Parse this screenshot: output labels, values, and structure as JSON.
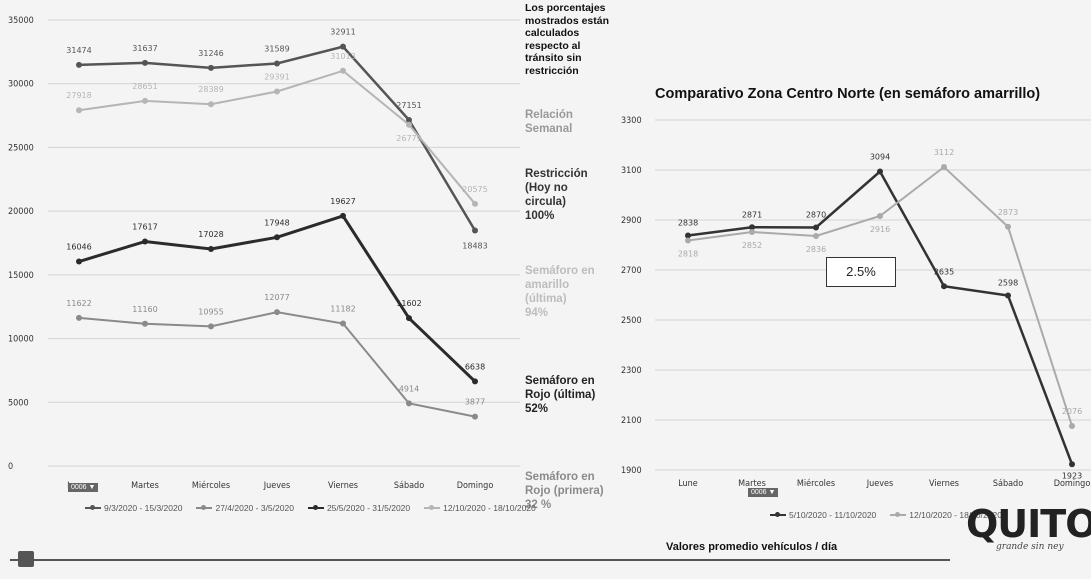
{
  "left_chart": {
    "categories": [
      "Lunes",
      "Martes",
      "Miércoles",
      "Jueves",
      "Viernes",
      "Sábado",
      "Domingo"
    ],
    "y_ticks": [
      "0",
      "5000",
      "10000",
      "15000",
      "20000",
      "25000",
      "30000",
      "35000"
    ],
    "legend": [
      "9/3/2020 - 15/3/2020",
      "27/4/2020 - 3/5/2020",
      "25/5/2020 - 31/5/2020",
      "12/10/2020 - 18/10/2020"
    ],
    "toolbar_label": "0006 ▼"
  },
  "right_chart": {
    "title": "Comparativo Zona Centro Norte (en semáforo amarrillo)",
    "categories": [
      "Lune",
      "Martes",
      "Miércoles",
      "Jueves",
      "Viernes",
      "Sábado",
      "Domingo"
    ],
    "y_ticks": [
      "1900",
      "2100",
      "2300",
      "2500",
      "2700",
      "2900",
      "3100",
      "3300"
    ],
    "legend": [
      "5/10/2020 - 11/10/2020",
      "12/10/2020 - 18/10/2020"
    ],
    "percent_box": "2.5%",
    "toolbar_label": "0006 ▼"
  },
  "side_notes": {
    "note": "Los porcentajes\nmostrados están\ncalculados\nrespecto al\ntránsito sin\nrestricción",
    "weekly": "Relación\nSemanal",
    "restriction": "Restricción\n(Hoy no\ncircula)\n100%",
    "yellow": "Semáforo en\namarillo\n(última)\n94%",
    "red_last": "Semáforo en\nRojo (última)\n52%",
    "red_first": "Semáforo en\nRojo (primera)\n32 %"
  },
  "footer_label": "Valores promedio vehículos / día",
  "logo": {
    "word": "QUITO",
    "tagline": "grande sin ney"
  },
  "chart_data": [
    {
      "type": "line",
      "title": "",
      "categories": [
        "Lunes",
        "Martes",
        "Miércoles",
        "Jueves",
        "Viernes",
        "Sábado",
        "Domingo"
      ],
      "ylim": [
        0,
        35000
      ],
      "grid": true,
      "legend_position": "bottom",
      "series": [
        {
          "name": "9/3/2020 - 15/3/2020",
          "values": [
            31474,
            31637,
            31246,
            31589,
            32911,
            27151,
            18483
          ],
          "color": "#555555"
        },
        {
          "name": "27/4/2020 - 3/5/2020",
          "values": [
            11622,
            11160,
            10955,
            12077,
            11182,
            4914,
            3877
          ],
          "color": "#8a8a8a"
        },
        {
          "name": "25/5/2020 - 31/5/2020",
          "values": [
            16046,
            17617,
            17028,
            17948,
            19627,
            11602,
            6638
          ],
          "color": "#2b2b2b"
        },
        {
          "name": "12/10/2020 - 18/10/2020",
          "values": [
            27918,
            28651,
            28389,
            29391,
            31013,
            26779,
            20575
          ],
          "color": "#b5b5b5"
        }
      ]
    },
    {
      "type": "line",
      "title": "Comparativo Zona Centro Norte (en semáforo amarrillo)",
      "categories": [
        "Lune",
        "Martes",
        "Miércoles",
        "Jueves",
        "Viernes",
        "Sábado",
        "Domingo"
      ],
      "ylim": [
        1900,
        3300
      ],
      "grid": true,
      "legend_position": "bottom",
      "series": [
        {
          "name": "5/10/2020 - 11/10/2020",
          "values": [
            2838,
            2871,
            2870,
            3094,
            2635,
            2598,
            1923
          ],
          "color": "#333333"
        },
        {
          "name": "12/10/2020 - 18/10/2020",
          "values": [
            2818,
            2852,
            2836,
            2916,
            3112,
            2873,
            2076
          ],
          "color": "#aaaaaa"
        }
      ]
    }
  ]
}
